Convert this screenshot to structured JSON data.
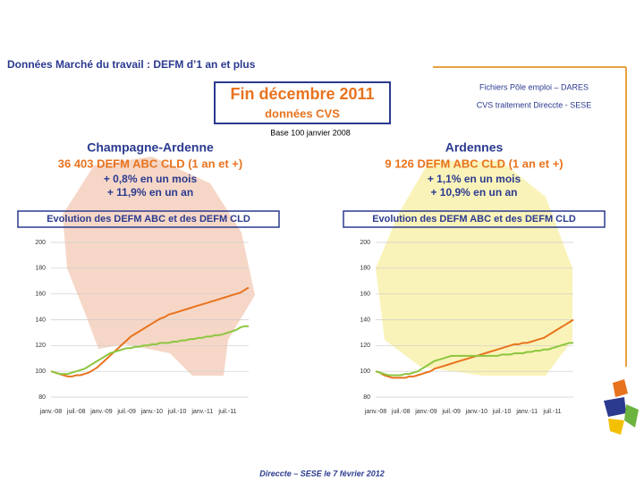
{
  "header": {
    "title": "Données Marché du travail : DEFM d’1 an et plus",
    "box_line1": "Fin   décembre  2011",
    "box_line2": "données CVS"
  },
  "source": [
    "Fichiers Pôle emploi – DARES",
    "CVS traitement Direccte - SESE"
  ],
  "base": "Base 100 janvier 2008",
  "regions": [
    {
      "name": "Champagne-Ardenne",
      "count": "36 403  DEFM ABC CLD (1 an et +)",
      "month": "+ 0,8% en un mois",
      "year": "+ 11,9% en un an"
    },
    {
      "name": "Ardennes",
      "count": "9 126  DEFM ABC CLD (1 an et +)",
      "month": "+ 1,1% en un mois",
      "year": "+ 10,9% en un an"
    }
  ],
  "chart_data": [
    {
      "type": "line",
      "title": "Evolution des DEFM ABC et des DEFM CLD",
      "categories": [
        "janv.-08",
        null,
        null,
        null,
        null,
        null,
        "juil.-08",
        null,
        null,
        null,
        null,
        null,
        "janv.-09",
        null,
        null,
        null,
        null,
        null,
        "juil.-09",
        null,
        null,
        null,
        null,
        null,
        "janv.-10",
        null,
        null,
        null,
        null,
        null,
        "juil.-10",
        null,
        null,
        null,
        null,
        null,
        "janv.-11",
        null,
        null,
        null,
        null,
        null,
        "juil.-11",
        null,
        null,
        null,
        null,
        null
      ],
      "ylim": [
        80,
        200
      ],
      "yticks": [
        80,
        100,
        120,
        140,
        160,
        180,
        200
      ],
      "grid": true,
      "series": [
        {
          "color": "#e8731e",
          "values": [
            100,
            99,
            98,
            97,
            96,
            96,
            97,
            97,
            98,
            99,
            101,
            103,
            106,
            109,
            112,
            115,
            118,
            121,
            124,
            127,
            129,
            131,
            133,
            135,
            137,
            139,
            141,
            142,
            144,
            145,
            146,
            147,
            148,
            149,
            150,
            151,
            152,
            153,
            154,
            155,
            156,
            157,
            158,
            159,
            160,
            161,
            163,
            165
          ]
        },
        {
          "color": "#8cc63f",
          "values": [
            100,
            99,
            98,
            98,
            98,
            99,
            100,
            101,
            102,
            104,
            106,
            108,
            110,
            112,
            114,
            115,
            116,
            117,
            118,
            118,
            119,
            119,
            120,
            120,
            121,
            121,
            122,
            122,
            122,
            123,
            123,
            124,
            124,
            125,
            125,
            126,
            126,
            127,
            127,
            128,
            128,
            129,
            130,
            131,
            132,
            134,
            135,
            135
          ]
        }
      ]
    },
    {
      "type": "line",
      "title": "Evolution des DEFM ABC et des DEFM CLD",
      "categories": [
        "janv.-08",
        null,
        null,
        null,
        null,
        null,
        "juil.-08",
        null,
        null,
        null,
        null,
        null,
        "janv.-09",
        null,
        null,
        null,
        null,
        null,
        "juil.-09",
        null,
        null,
        null,
        null,
        null,
        "janv.-10",
        null,
        null,
        null,
        null,
        null,
        "juil.-10",
        null,
        null,
        null,
        null,
        null,
        "janv.-11",
        null,
        null,
        null,
        null,
        null,
        "juil.-11",
        null,
        null,
        null,
        null,
        null
      ],
      "ylim": [
        80,
        200
      ],
      "yticks": [
        80,
        100,
        120,
        140,
        160,
        180,
        200
      ],
      "grid": true,
      "series": [
        {
          "color": "#e8731e",
          "values": [
            100,
            99,
            97,
            96,
            95,
            95,
            95,
            95,
            96,
            96,
            97,
            98,
            99,
            100,
            102,
            103,
            104,
            105,
            106,
            107,
            108,
            109,
            110,
            111,
            112,
            113,
            114,
            115,
            116,
            117,
            118,
            119,
            120,
            121,
            121,
            122,
            122,
            123,
            124,
            125,
            126,
            128,
            130,
            132,
            134,
            136,
            138,
            140
          ]
        },
        {
          "color": "#8cc63f",
          "values": [
            100,
            99,
            98,
            97,
            97,
            97,
            97,
            98,
            98,
            99,
            100,
            102,
            104,
            106,
            108,
            109,
            110,
            111,
            112,
            112,
            112,
            112,
            112,
            112,
            112,
            112,
            112,
            112,
            112,
            112,
            113,
            113,
            113,
            114,
            114,
            114,
            115,
            115,
            116,
            116,
            117,
            117,
            118,
            119,
            120,
            121,
            122,
            122
          ]
        }
      ]
    }
  ],
  "footer": "Direccte – SESE le 7 février 2012"
}
